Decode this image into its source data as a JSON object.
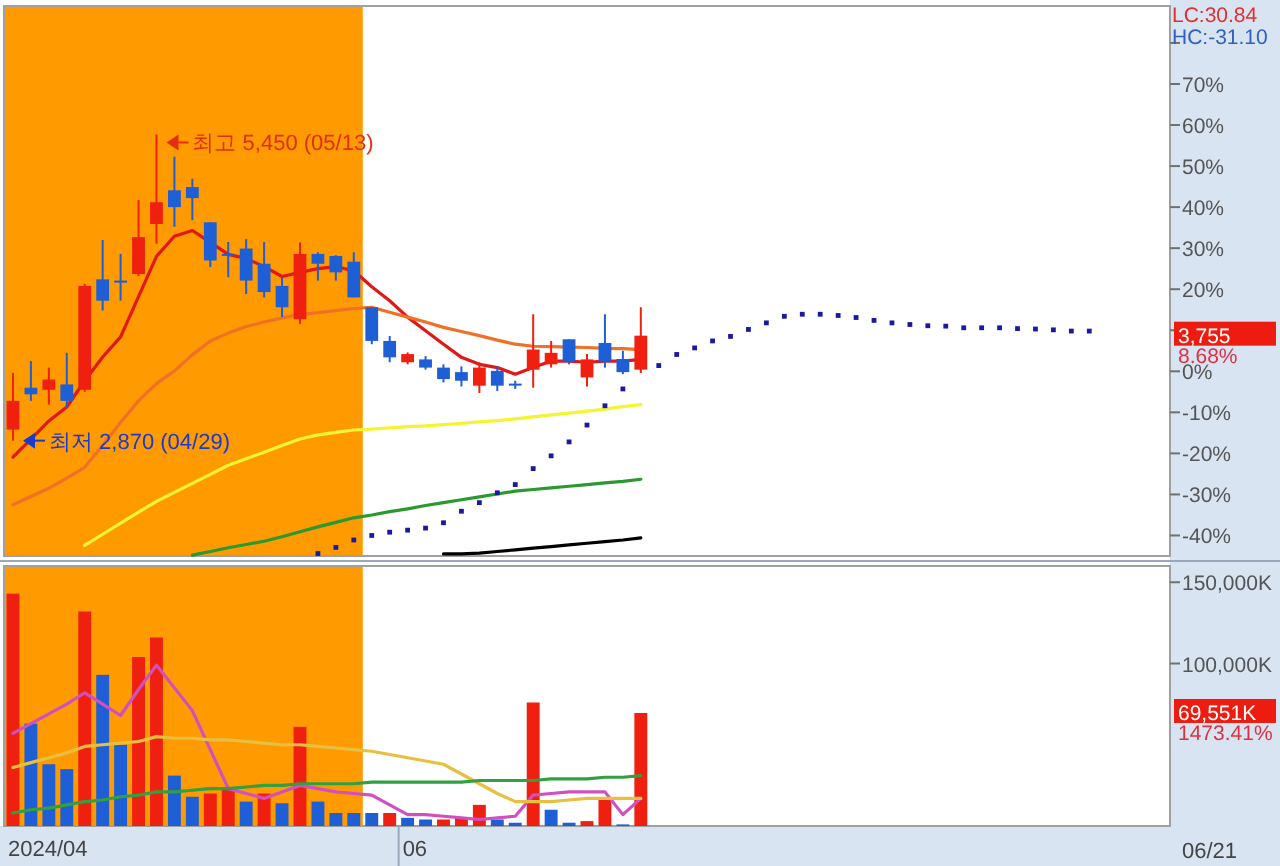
{
  "chart_data": [
    {
      "type": "candlestick",
      "categories": [
        null,
        null,
        null,
        null,
        null,
        null,
        null,
        null,
        null,
        null,
        null,
        null,
        null,
        null,
        null,
        null,
        null,
        null,
        null,
        null,
        null,
        null,
        null,
        null,
        null,
        null,
        null,
        null,
        null,
        null,
        null,
        null,
        null,
        null,
        null,
        null,
        null,
        null,
        null,
        null,
        null,
        null,
        null,
        null,
        null,
        null,
        null,
        null,
        null,
        null,
        null,
        null,
        null,
        null,
        null,
        null,
        null,
        null,
        null,
        null,
        null,
        null,
        null,
        null,
        null
      ],
      "ohlc": [
        [
          -14.2,
          -0.4,
          -16.9,
          -7.2
        ],
        [
          -4.0,
          2.5,
          -7.2,
          -5.6
        ],
        [
          -4.5,
          0.9,
          -8.1,
          -2.0
        ],
        [
          -3.2,
          4.5,
          -8.9,
          -7.2
        ],
        [
          -4.5,
          21.3,
          -5.0,
          20.8
        ],
        [
          22.4,
          32.0,
          14.8,
          17.2
        ],
        [
          22.1,
          28.6,
          17.2,
          21.6
        ],
        [
          23.7,
          41.7,
          23.2,
          32.7
        ],
        [
          35.9,
          57.7,
          31.1,
          41.2
        ],
        [
          44.1,
          52.3,
          35.2,
          40.0
        ],
        [
          44.9,
          46.9,
          36.8,
          42.2
        ],
        [
          36.3,
          36.3,
          25.4,
          27.0
        ],
        [
          28.6,
          31.5,
          22.9,
          28.1
        ],
        [
          29.9,
          32.2,
          18.8,
          22.1
        ],
        [
          26.2,
          31.5,
          18.0,
          19.3
        ],
        [
          20.8,
          22.9,
          13.2,
          15.6
        ],
        [
          12.7,
          31.4,
          11.5,
          28.6
        ],
        [
          28.6,
          29.0,
          22.1,
          26.2
        ],
        [
          28.1,
          28.3,
          22.1,
          24.1
        ],
        [
          26.7,
          29.0,
          18.0,
          18.0
        ],
        [
          15.6,
          15.6,
          6.6,
          7.4
        ],
        [
          7.4,
          8.6,
          2.2,
          3.4
        ],
        [
          2.2,
          4.6,
          1.7,
          4.2
        ],
        [
          2.9,
          3.7,
          0.4,
          0.9
        ],
        [
          0.9,
          1.7,
          -2.7,
          -1.9
        ],
        [
          -0.2,
          1.2,
          -3.7,
          -2.3
        ],
        [
          -3.5,
          2.2,
          -5.3,
          0.9
        ],
        [
          0.1,
          1.2,
          -4.8,
          -3.5
        ],
        [
          -3.0,
          -2.3,
          -4.3,
          -3.3
        ],
        [
          0.4,
          13.9,
          -4.0,
          5.3
        ],
        [
          1.7,
          7.4,
          0.9,
          4.5
        ],
        [
          7.8,
          7.8,
          1.7,
          2.5
        ],
        [
          -1.5,
          4.2,
          -3.7,
          2.9
        ],
        [
          6.9,
          13.9,
          0.9,
          2.5
        ],
        [
          3.0,
          5.0,
          -0.7,
          -0.2
        ],
        [
          0.4,
          15.6,
          -0.4,
          8.68
        ],
        null,
        null,
        null,
        null,
        null,
        null,
        null,
        null,
        null,
        null,
        null,
        null,
        null,
        null,
        null,
        null,
        null,
        null,
        null,
        null,
        null,
        null,
        null,
        null,
        null,
        null,
        null,
        null,
        null
      ],
      "colors": [
        "#f02010",
        "#1f5fd6",
        "#f02010",
        "#1f5fd6",
        "#f02010",
        "#1f5fd6",
        "#1f5fd6",
        "#f02010",
        "#f02010",
        "#1f5fd6",
        "#1f5fd6",
        "#1f5fd6",
        "#1f5fd6",
        "#1f5fd6",
        "#1f5fd6",
        "#1f5fd6",
        "#f02010",
        "#1f5fd6",
        "#1f5fd6",
        "#1f5fd6",
        "#1f5fd6",
        "#1f5fd6",
        "#f02010",
        "#1f5fd6",
        "#1f5fd6",
        "#1f5fd6",
        "#f02010",
        "#1f5fd6",
        "#1f5fd6",
        "#f02010",
        "#f02010",
        "#1f5fd6",
        "#f02010",
        "#1f5fd6",
        "#1f5fd6",
        "#f02010",
        null,
        null,
        null,
        null,
        null,
        null,
        null,
        null,
        null,
        null,
        null,
        null,
        null,
        null,
        null,
        null,
        null,
        null,
        null,
        null,
        null,
        null,
        null,
        null,
        null,
        null,
        null,
        null,
        null
      ],
      "series": [
        {
          "type": "line",
          "color": "#e01818",
          "values": [
            -20.9,
            -16.5,
            -12.1,
            -8.7,
            -2.3,
            3.5,
            8.4,
            18.2,
            28.0,
            32.9,
            34.3,
            31.4,
            28.5,
            27.5,
            25.5,
            23.1,
            24.1,
            25.0,
            25.5,
            24.5,
            20.6,
            17.2,
            13.2,
            9.9,
            6.6,
            3.4,
            1.7,
            0.9,
            -0.7,
            0.9,
            2.5,
            2.5,
            2.2,
            2.5,
            2.5,
            2.9,
            null,
            null,
            null,
            null,
            null,
            null,
            null,
            null,
            null,
            null,
            null,
            null,
            null,
            null,
            null,
            null,
            null,
            null,
            null,
            null,
            null,
            null,
            null,
            null,
            null,
            null,
            null,
            null,
            null
          ]
        },
        {
          "type": "line",
          "color": "#f07028",
          "values": [
            -32.5,
            -30.5,
            -28.5,
            -26.0,
            -23.4,
            -18.0,
            -12.5,
            -7.2,
            -3.0,
            0.1,
            4.0,
            7.4,
            9.3,
            10.9,
            12.0,
            13.0,
            13.8,
            14.3,
            14.8,
            15.3,
            15.6,
            14.4,
            13.2,
            12.0,
            10.7,
            9.7,
            8.7,
            7.6,
            6.6,
            6.1,
            6.0,
            5.9,
            5.8,
            5.6,
            5.5,
            5.3,
            null,
            null,
            null,
            null,
            null,
            null,
            null,
            null,
            null,
            null,
            null,
            null,
            null,
            null,
            null,
            null,
            null,
            null,
            null,
            null,
            null,
            null,
            null,
            null,
            null,
            null,
            null,
            null,
            null
          ]
        },
        {
          "type": "line",
          "color": "#f4f432",
          "values": [
            null,
            null,
            null,
            null,
            -42.4,
            -39.7,
            -37.0,
            -34.3,
            -31.7,
            -29.5,
            -27.3,
            -25.1,
            -22.9,
            -21.3,
            -19.7,
            -18.1,
            -16.5,
            -15.5,
            -14.9,
            -14.3,
            -14.1,
            -13.8,
            -13.5,
            -13.3,
            -13.0,
            -12.7,
            -12.3,
            -12.0,
            -11.6,
            -11.1,
            -10.6,
            -10.2,
            -9.7,
            -9.2,
            -8.6,
            -8.1,
            null,
            null,
            null,
            null,
            null,
            null,
            null,
            null,
            null,
            null,
            null,
            null,
            null,
            null,
            null,
            null,
            null,
            null,
            null,
            null,
            null,
            null,
            null,
            null,
            null,
            null,
            null,
            null,
            null
          ]
        },
        {
          "type": "line",
          "color": "#2a9a30",
          "values": [
            null,
            null,
            null,
            null,
            null,
            null,
            null,
            null,
            null,
            null,
            -44.8,
            -43.9,
            -43.0,
            -42.2,
            -41.4,
            -40.3,
            -39.1,
            -37.9,
            -36.8,
            -35.7,
            -35.0,
            -34.2,
            -33.5,
            -32.7,
            -32.0,
            -31.3,
            -30.6,
            -29.9,
            -29.2,
            -28.8,
            -28.4,
            -28.0,
            -27.6,
            -27.2,
            -26.8,
            -26.3,
            null,
            null,
            null,
            null,
            null,
            null,
            null,
            null,
            null,
            null,
            null,
            null,
            null,
            null,
            null,
            null,
            null,
            null,
            null,
            null,
            null,
            null,
            null,
            null,
            null,
            null,
            null,
            null,
            null
          ]
        },
        {
          "type": "line",
          "color": "#000000",
          "values": [
            null,
            null,
            null,
            null,
            null,
            null,
            null,
            null,
            null,
            null,
            null,
            null,
            null,
            null,
            null,
            null,
            null,
            null,
            null,
            null,
            null,
            null,
            null,
            null,
            -44.5,
            -44.5,
            -44.3,
            -43.9,
            -43.5,
            -43.1,
            -42.7,
            -42.3,
            -41.9,
            -41.5,
            -41.1,
            -40.6,
            null,
            null,
            null,
            null,
            null,
            null,
            null,
            null,
            null,
            null,
            null,
            null,
            null,
            null,
            null,
            null,
            null,
            null,
            null,
            null,
            null,
            null,
            null,
            null,
            null,
            null,
            null,
            null,
            null
          ]
        },
        {
          "type": "scatter",
          "marker": "square",
          "color": "#1a1aa0",
          "values": [
            null,
            null,
            null,
            null,
            null,
            null,
            null,
            null,
            null,
            null,
            null,
            null,
            null,
            null,
            null,
            null,
            null,
            -44.4,
            -42.9,
            -41.1,
            -40.0,
            -39.2,
            -38.7,
            -38.2,
            -36.9,
            -34.1,
            -32.0,
            -29.6,
            -27.6,
            -23.7,
            -20.6,
            -17.2,
            -13.1,
            -8.4,
            -4.3,
            null,
            1.4,
            4.1,
            5.7,
            7.4,
            8.5,
            10.2,
            11.8,
            13.4,
            13.9,
            13.9,
            13.6,
            13.1,
            12.4,
            11.8,
            11.4,
            11.1,
            11.0,
            10.6,
            10.6,
            10.6,
            10.4,
            10.3,
            10.1,
            9.8,
            9.8,
            null,
            null,
            null,
            null
          ]
        }
      ],
      "ylim": [
        -45,
        89
      ],
      "yticks": [
        {
          "value": -40,
          "label": "-40%"
        },
        {
          "value": -30,
          "label": "-30%"
        },
        {
          "value": -20,
          "label": "-20%"
        },
        {
          "value": -10,
          "label": "-10%"
        },
        {
          "value": 0,
          "label": "0%"
        },
        {
          "value": 10,
          "label": null
        },
        {
          "value": 20,
          "label": "20%"
        },
        {
          "value": 30,
          "label": "30%"
        },
        {
          "value": 40,
          "label": "40%"
        },
        {
          "value": 50,
          "label": "50%"
        },
        {
          "value": 60,
          "label": "60%"
        },
        {
          "value": 70,
          "label": "70%"
        },
        {
          "value": 80,
          "label": null
        }
      ],
      "tick_labels": "y",
      "annotations": [
        "최고 5,450 (05/13)",
        "최저 2,870 (04/29)",
        "LC:30.84",
        "HC:-31.10",
        "3,755",
        "8.68%"
      ]
    },
    {
      "type": "bar",
      "categories": [
        null,
        null,
        null,
        null,
        null,
        null,
        null,
        null,
        null,
        null,
        null,
        null,
        null,
        null,
        null,
        null,
        null,
        null,
        null,
        null,
        null,
        null,
        null,
        null,
        null,
        null,
        null,
        null,
        null,
        null,
        null,
        null,
        null,
        null,
        null,
        null,
        null,
        null,
        null,
        null,
        null,
        null,
        null,
        null,
        null,
        null,
        null,
        null,
        null,
        null,
        null,
        null,
        null,
        null,
        null,
        null,
        null,
        null,
        null,
        null,
        null,
        null,
        null,
        null,
        null
      ],
      "series": [
        {
          "type": "bar",
          "values": [
            143000,
            63000,
            38000,
            35000,
            132000,
            93000,
            50000,
            104000,
            116000,
            31000,
            18000,
            20000,
            23000,
            15000,
            20000,
            14000,
            61000,
            15000,
            8000,
            8000,
            8000,
            8000,
            5000,
            4000,
            4000,
            5000,
            13000,
            4000,
            2000,
            76000,
            10000,
            2000,
            3000,
            16000,
            1000,
            69551,
            null,
            null,
            null,
            null,
            null,
            null,
            null,
            null,
            null,
            null,
            null,
            null,
            null,
            null,
            null,
            null,
            null,
            null,
            null,
            null,
            null,
            null,
            null,
            null,
            null,
            null,
            null,
            null,
            null
          ],
          "colors": [
            "#f02010",
            "#1f5fd6",
            "#1f5fd6",
            "#1f5fd6",
            "#f02010",
            "#1f5fd6",
            "#1f5fd6",
            "#f02010",
            "#f02010",
            "#1f5fd6",
            "#1f5fd6",
            "#f02010",
            "#f02010",
            "#1f5fd6",
            "#f02010",
            "#1f5fd6",
            "#f02010",
            "#1f5fd6",
            "#1f5fd6",
            "#1f5fd6",
            "#1f5fd6",
            "#f02010",
            "#1f5fd6",
            "#1f5fd6",
            "#f02010",
            "#f02010",
            "#f02010",
            "#1f5fd6",
            "#1f5fd6",
            "#f02010",
            "#1f5fd6",
            "#1f5fd6",
            "#f02010",
            "#f02010",
            "#1f5fd6",
            "#f02010",
            null,
            null,
            null,
            null,
            null,
            null,
            null,
            null,
            null,
            null,
            null,
            null,
            null,
            null,
            null,
            null,
            null,
            null,
            null,
            null,
            null,
            null,
            null,
            null,
            null,
            null,
            null,
            null,
            null
          ]
        },
        {
          "type": "line",
          "color": "#d050c0",
          "values": [
            57000,
            63000,
            69000,
            75000,
            82000,
            75000,
            68000,
            84000,
            99000,
            85000,
            71000,
            47000,
            23000,
            20000,
            17000,
            21000,
            25000,
            23000,
            21000,
            20000,
            19000,
            13000,
            7000,
            7000,
            6000,
            5000,
            4000,
            5000,
            6000,
            19000,
            20000,
            21000,
            21000,
            21000,
            7000,
            17000,
            null,
            null,
            null,
            null,
            null,
            null,
            null,
            null,
            null,
            null,
            null,
            null,
            null,
            null,
            null,
            null,
            null,
            null,
            null,
            null,
            null,
            null,
            null,
            null,
            null,
            null,
            null,
            null,
            null
          ]
        },
        {
          "type": "line",
          "color": "#e8c040",
          "values": [
            36000,
            39000,
            42000,
            45000,
            49000,
            50000,
            51000,
            52000,
            55000,
            54000,
            54000,
            53000,
            53000,
            52000,
            51000,
            50000,
            50000,
            49000,
            48000,
            47000,
            46000,
            44000,
            42000,
            40000,
            38000,
            32000,
            26000,
            20000,
            15000,
            15000,
            15000,
            16000,
            17000,
            17000,
            17000,
            17000,
            null,
            null,
            null,
            null,
            null,
            null,
            null,
            null,
            null,
            null,
            null,
            null,
            null,
            null,
            null,
            null,
            null,
            null,
            null,
            null,
            null,
            null,
            null,
            null,
            null,
            null,
            null,
            null,
            null
          ]
        },
        {
          "type": "line",
          "color": "#30a040",
          "values": [
            8000,
            10000,
            11000,
            13000,
            15000,
            16000,
            18000,
            19000,
            21000,
            21000,
            22000,
            23000,
            23000,
            24000,
            25000,
            25000,
            26000,
            26000,
            26000,
            26000,
            27000,
            27000,
            27000,
            27000,
            27000,
            27000,
            28000,
            28000,
            28000,
            28000,
            29000,
            29000,
            29000,
            30000,
            30000,
            31000,
            null,
            null,
            null,
            null,
            null,
            null,
            null,
            null,
            null,
            null,
            null,
            null,
            null,
            null,
            null,
            null,
            null,
            null,
            null,
            null,
            null,
            null,
            null,
            null,
            null,
            null,
            null,
            null,
            null
          ]
        }
      ],
      "ylim": [
        0,
        160000
      ],
      "yticks": [
        {
          "value": 100000,
          "label": "100,000K"
        },
        {
          "value": 150000,
          "label": "150,000K"
        }
      ],
      "annotations": [
        "69,551K",
        "1473.41%",
        "06/21",
        "2024/04",
        "06"
      ]
    }
  ]
}
